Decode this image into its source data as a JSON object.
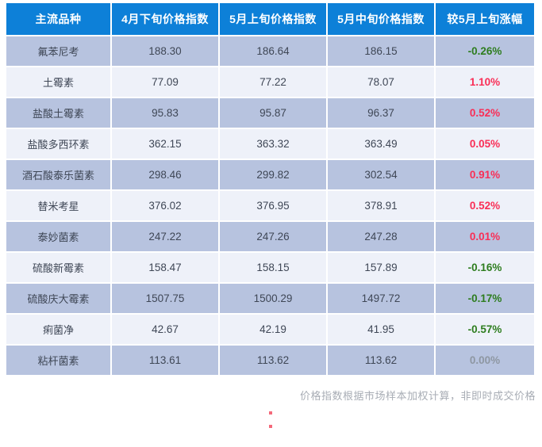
{
  "table": {
    "columns": [
      "主流品种",
      "4月下旬价格指数",
      "5月上旬价格指数",
      "5月中旬价格指数",
      "较5月上旬涨幅"
    ],
    "rows": [
      {
        "name": "氟苯尼考",
        "values": [
          "188.30",
          "186.64",
          "186.15"
        ],
        "change": "-0.26%",
        "trend": "down"
      },
      {
        "name": "土霉素",
        "values": [
          "77.09",
          "77.22",
          "78.07"
        ],
        "change": "1.10%",
        "trend": "up"
      },
      {
        "name": "盐酸土霉素",
        "values": [
          "95.83",
          "95.87",
          "96.37"
        ],
        "change": "0.52%",
        "trend": "up"
      },
      {
        "name": "盐酸多西环素",
        "values": [
          "362.15",
          "363.32",
          "363.49"
        ],
        "change": "0.05%",
        "trend": "up"
      },
      {
        "name": "酒石酸泰乐菌素",
        "values": [
          "298.46",
          "299.82",
          "302.54"
        ],
        "change": "0.91%",
        "trend": "up"
      },
      {
        "name": "替米考星",
        "values": [
          "376.02",
          "376.95",
          "378.91"
        ],
        "change": "0.52%",
        "trend": "up"
      },
      {
        "name": "泰妙菌素",
        "values": [
          "247.22",
          "247.26",
          "247.28"
        ],
        "change": "0.01%",
        "trend": "up"
      },
      {
        "name": "硫酸新霉素",
        "values": [
          "158.47",
          "158.15",
          "157.89"
        ],
        "change": "-0.16%",
        "trend": "down"
      },
      {
        "name": "硫酸庆大霉素",
        "values": [
          "1507.75",
          "1500.29",
          "1497.72"
        ],
        "change": "-0.17%",
        "trend": "down"
      },
      {
        "name": "痢菌净",
        "values": [
          "42.67",
          "42.19",
          "41.95"
        ],
        "change": "-0.57%",
        "trend": "down"
      },
      {
        "name": "粘杆菌素",
        "values": [
          "113.61",
          "113.62",
          "113.62"
        ],
        "change": "0.00%",
        "trend": "flat"
      }
    ]
  },
  "footer": {
    "note": "价格指数根据市场样本加权计算，非即时成交价格"
  },
  "colors": {
    "header_bg": "#0d80d8",
    "header_text": "#ffffff",
    "row_dark": "#b7c3df",
    "row_light": "#eef1f9",
    "up_red": "#f92e56",
    "down_green": "#2e7d1f",
    "flat_gray": "#8e97a2",
    "footnote_gray": "#a8adb5",
    "dot_red": "#f4697a"
  },
  "chart_data": {
    "type": "table",
    "title": "主流品种价格指数表",
    "columns": [
      "主流品种",
      "4月下旬价格指数",
      "5月上旬价格指数",
      "5月中旬价格指数",
      "较5月上旬涨幅"
    ],
    "rows": [
      [
        "氟苯尼考",
        188.3,
        186.64,
        186.15,
        "-0.26%"
      ],
      [
        "土霉素",
        77.09,
        77.22,
        78.07,
        "1.10%"
      ],
      [
        "盐酸土霉素",
        95.83,
        95.87,
        96.37,
        "0.52%"
      ],
      [
        "盐酸多西环素",
        362.15,
        363.32,
        363.49,
        "0.05%"
      ],
      [
        "酒石酸泰乐菌素",
        298.46,
        299.82,
        302.54,
        "0.91%"
      ],
      [
        "替米考星",
        376.02,
        376.95,
        378.91,
        "0.52%"
      ],
      [
        "泰妙菌素",
        247.22,
        247.26,
        247.28,
        "0.01%"
      ],
      [
        "硫酸新霉素",
        158.47,
        158.15,
        157.89,
        "-0.16%"
      ],
      [
        "硫酸庆大霉素",
        1507.75,
        1500.29,
        1497.72,
        "-0.17%"
      ],
      [
        "痢菌净",
        42.67,
        42.19,
        41.95,
        "-0.57%"
      ],
      [
        "粘杆菌素",
        113.61,
        113.62,
        113.62,
        "0.00%"
      ]
    ],
    "annotation": "价格指数根据市场样本加权计算，非即时成交价格"
  }
}
